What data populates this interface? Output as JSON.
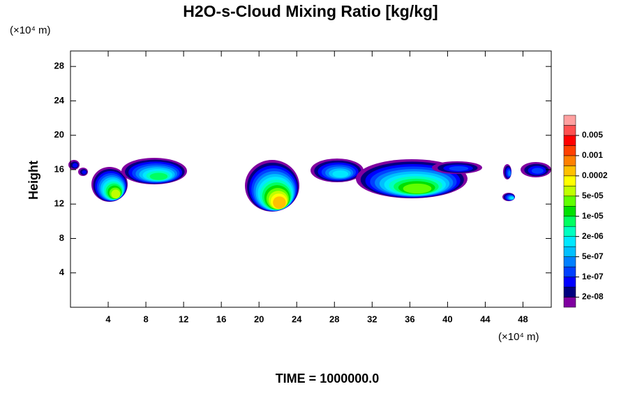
{
  "chart_data": {
    "type": "contour",
    "title": "H2O-s-Cloud Mixing Ratio [kg/kg]",
    "y_label": "Height",
    "y_unit": "(×10⁴ m)",
    "x_unit": "(×10⁴ m)",
    "annotation": "TIME = 1000000.0",
    "xlim": [
      0,
      51
    ],
    "ylim": [
      0,
      29.8
    ],
    "xticks": [
      4,
      8,
      12,
      16,
      20,
      24,
      28,
      32,
      36,
      40,
      44,
      48
    ],
    "yticks": [
      4,
      8,
      12,
      16,
      20,
      24,
      28
    ],
    "colorbar": {
      "colors": [
        "#8000a0",
        "#00007f",
        "#0000ff",
        "#0040ff",
        "#0080ff",
        "#00c0ff",
        "#00e8ff",
        "#00ffc0",
        "#00ff60",
        "#00e000",
        "#60ff00",
        "#c0ff00",
        "#ffff00",
        "#ffc000",
        "#ff8000",
        "#ff4000",
        "#ff0000",
        "#ff5050",
        "#ffa0a0"
      ],
      "ticks": [
        {
          "value": 2e-08,
          "label": "2e-08"
        },
        {
          "value": 1e-07,
          "label": "1e-07"
        },
        {
          "value": 5e-07,
          "label": "5e-07"
        },
        {
          "value": 2e-06,
          "label": "2e-06"
        },
        {
          "value": 1e-05,
          "label": "1e-05"
        },
        {
          "value": 5e-05,
          "label": "5e-05"
        },
        0.0002,
        0.001,
        0.005
      ]
    }
  }
}
